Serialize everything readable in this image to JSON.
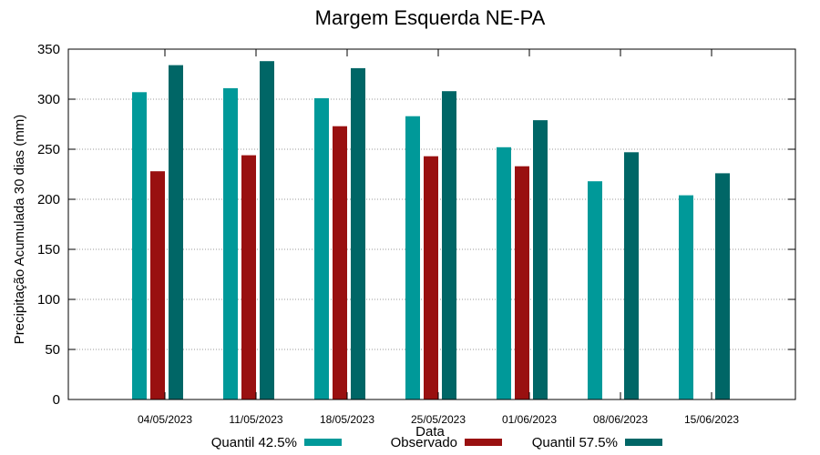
{
  "chart_data": {
    "type": "bar",
    "title": "Margem Esquerda NE-PA",
    "xlabel": "Data",
    "ylabel": "Precipitação Acumulada 30 dias (mm)",
    "ylim": [
      0,
      350
    ],
    "yticks": [
      0,
      50,
      100,
      150,
      200,
      250,
      300,
      350
    ],
    "grid": true,
    "legend_position": "bottom",
    "categories": [
      "04/05/2023",
      "11/05/2023",
      "18/05/2023",
      "25/05/2023",
      "01/06/2023",
      "08/06/2023",
      "15/06/2023"
    ],
    "series": [
      {
        "name": "Quantil 42.5%",
        "color": "#009999",
        "values": [
          307,
          311,
          301,
          283,
          252,
          218,
          204
        ]
      },
      {
        "name": "Observado",
        "color": "#991010",
        "values": [
          228,
          244,
          273,
          243,
          233,
          null,
          null
        ]
      },
      {
        "name": "Quantil 57.5%",
        "color": "#006666",
        "values": [
          334,
          338,
          331,
          308,
          279,
          247,
          226
        ]
      }
    ]
  }
}
